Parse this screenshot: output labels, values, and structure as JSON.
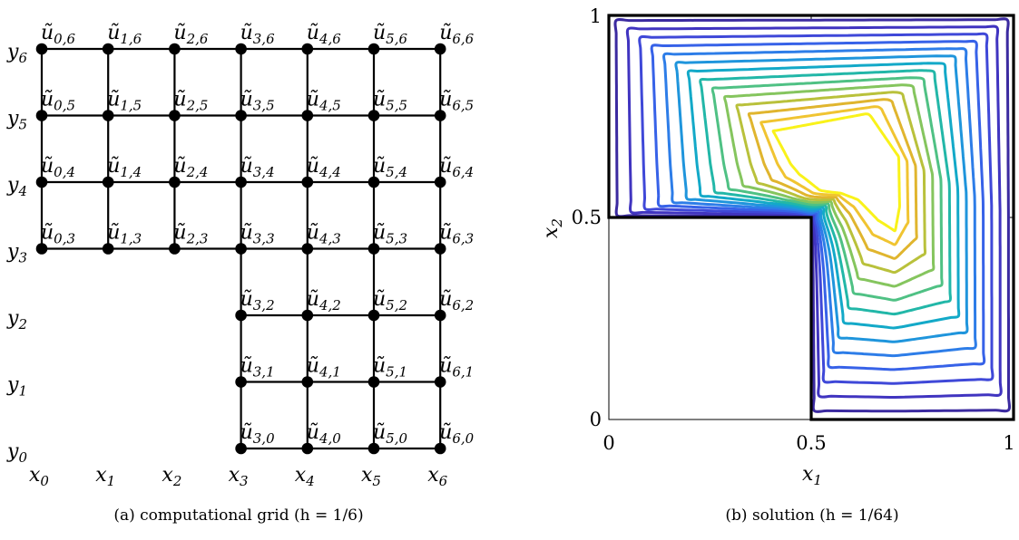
{
  "panel_a": {
    "node_symbol": "ũ",
    "row_labels": [
      {
        "var": "y",
        "idx": "0"
      },
      {
        "var": "y",
        "idx": "1"
      },
      {
        "var": "y",
        "idx": "2"
      },
      {
        "var": "y",
        "idx": "3"
      },
      {
        "var": "y",
        "idx": "4"
      },
      {
        "var": "y",
        "idx": "5"
      },
      {
        "var": "y",
        "idx": "6"
      }
    ],
    "col_labels": [
      {
        "var": "x",
        "idx": "0"
      },
      {
        "var": "x",
        "idx": "1"
      },
      {
        "var": "x",
        "idx": "2"
      },
      {
        "var": "x",
        "idx": "3"
      },
      {
        "var": "x",
        "idx": "4"
      },
      {
        "var": "x",
        "idx": "5"
      },
      {
        "var": "x",
        "idx": "6"
      }
    ],
    "nodes": [
      "0,6",
      "1,6",
      "2,6",
      "3,6",
      "4,6",
      "5,6",
      "6,6",
      "0,5",
      "1,5",
      "2,5",
      "3,5",
      "4,5",
      "5,5",
      "6,5",
      "0,4",
      "1,4",
      "2,4",
      "3,4",
      "4,4",
      "5,4",
      "6,4",
      "0,3",
      "1,3",
      "2,3",
      "3,3",
      "4,3",
      "5,3",
      "6,3",
      "3,2",
      "4,2",
      "5,2",
      "6,2",
      "3,1",
      "4,1",
      "5,1",
      "6,1",
      "3,0",
      "4,0",
      "5,0",
      "6,0"
    ],
    "caption": "(a) computational grid (h = 1/6)"
  },
  "panel_b": {
    "xlabel": {
      "var": "x",
      "idx": "1"
    },
    "ylabel": {
      "var": "x",
      "idx": "2"
    },
    "x_ticks": [
      "0",
      "0.5",
      "1"
    ],
    "y_ticks": [
      "0",
      "0.5",
      "1"
    ],
    "caption": "(b) solution (h = 1/64)",
    "colors": {
      "boundary": "#000000",
      "contour_levels": [
        "#3b2aa0",
        "#4034c0",
        "#3f48d8",
        "#3762e8",
        "#2d7de8",
        "#1f95dc",
        "#13a9c8",
        "#22b7a8",
        "#4fc184",
        "#85c55e",
        "#b9c13b",
        "#e0b52e",
        "#f0c431",
        "#f9f21a"
      ]
    }
  }
}
